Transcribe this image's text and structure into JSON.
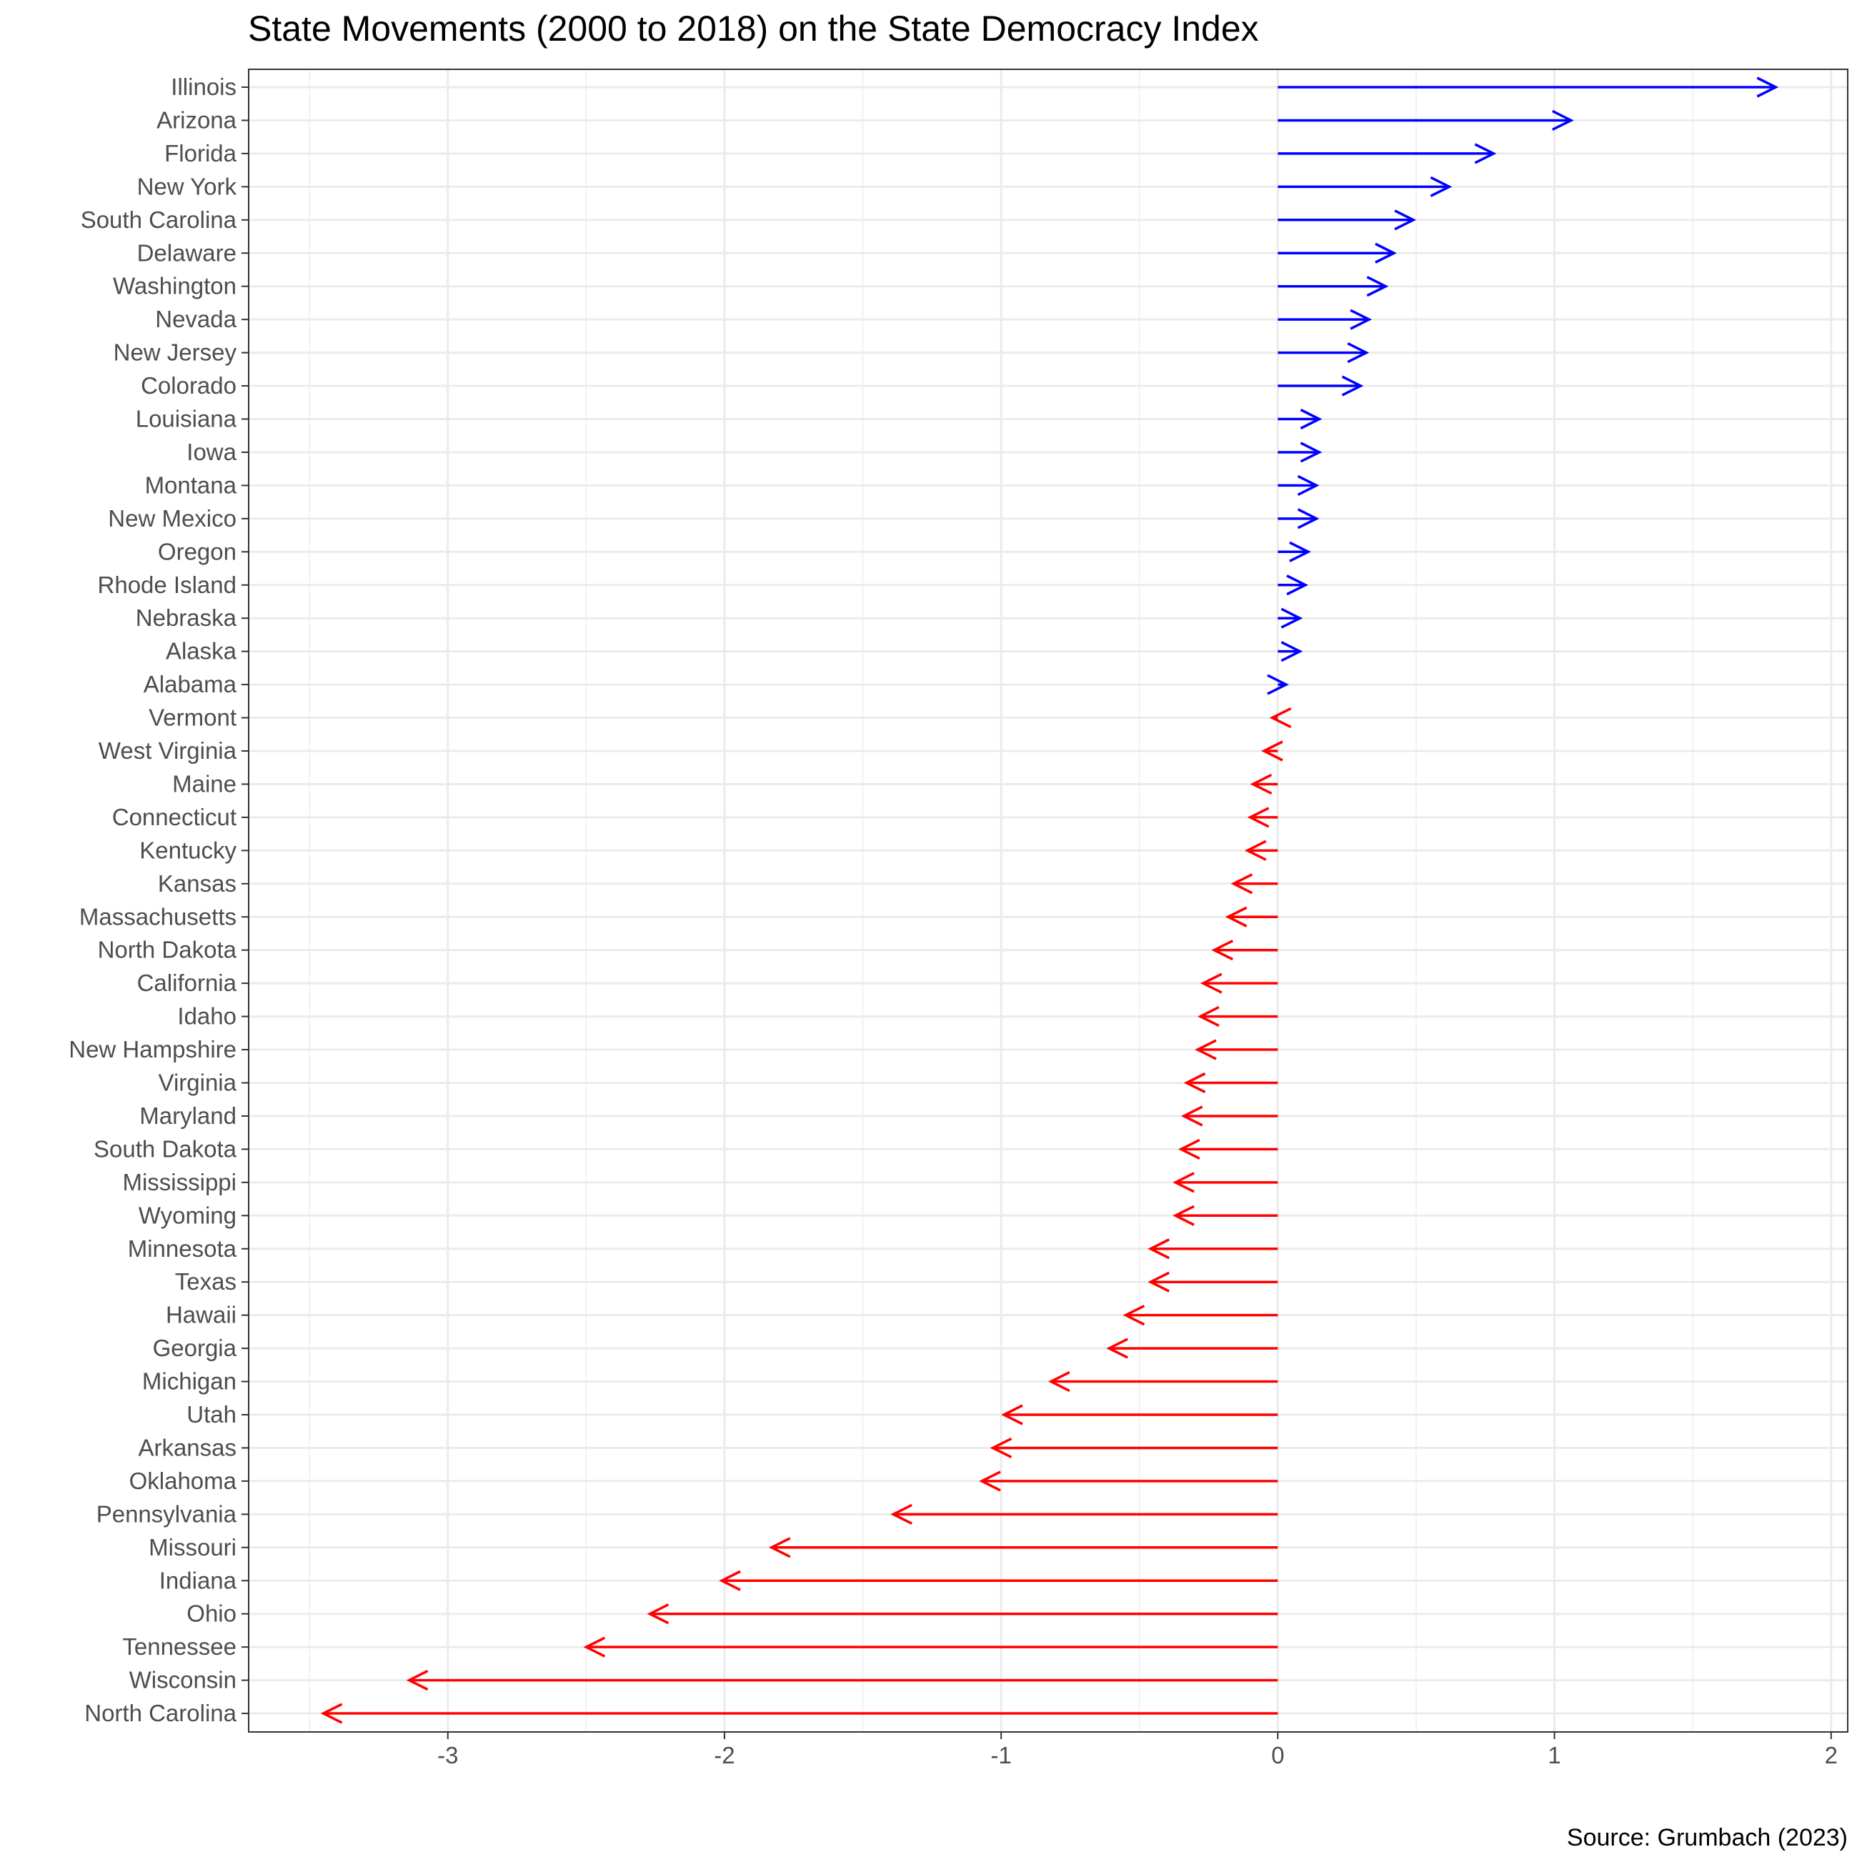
{
  "chart_data": {
    "type": "arrow",
    "title": "State Movements (2000 to 2018) on the State Democracy Index",
    "caption": "Source: Grumbach (2023)",
    "xlabel": "",
    "ylabel": "",
    "xlim": [
      -3.72,
      2.06
    ],
    "xticks": [
      -3,
      -2,
      -1,
      0,
      1,
      2
    ],
    "grid": true,
    "colors": {
      "positive": "#0000ff",
      "negative": "#ff0000"
    },
    "series": [
      {
        "state": "Illinois",
        "start": 0,
        "end": 1.8
      },
      {
        "state": "Arizona",
        "start": 0,
        "end": 1.06
      },
      {
        "state": "Florida",
        "start": 0,
        "end": 0.78
      },
      {
        "state": "New York",
        "start": 0,
        "end": 0.62
      },
      {
        "state": "South Carolina",
        "start": 0,
        "end": 0.49
      },
      {
        "state": "Delaware",
        "start": 0,
        "end": 0.42
      },
      {
        "state": "Washington",
        "start": 0,
        "end": 0.39
      },
      {
        "state": "Nevada",
        "start": 0,
        "end": 0.33
      },
      {
        "state": "New Jersey",
        "start": 0,
        "end": 0.32
      },
      {
        "state": "Colorado",
        "start": 0,
        "end": 0.3
      },
      {
        "state": "Louisiana",
        "start": 0,
        "end": 0.15
      },
      {
        "state": "Iowa",
        "start": 0,
        "end": 0.15
      },
      {
        "state": "Montana",
        "start": 0,
        "end": 0.14
      },
      {
        "state": "New Mexico",
        "start": 0,
        "end": 0.14
      },
      {
        "state": "Oregon",
        "start": 0,
        "end": 0.11
      },
      {
        "state": "Rhode Island",
        "start": 0,
        "end": 0.1
      },
      {
        "state": "Nebraska",
        "start": 0,
        "end": 0.08
      },
      {
        "state": "Alaska",
        "start": 0,
        "end": 0.08
      },
      {
        "state": "Alabama",
        "start": 0,
        "end": 0.03
      },
      {
        "state": "Vermont",
        "start": 0,
        "end": -0.02
      },
      {
        "state": "West Virginia",
        "start": 0,
        "end": -0.05
      },
      {
        "state": "Maine",
        "start": 0,
        "end": -0.09
      },
      {
        "state": "Connecticut",
        "start": 0,
        "end": -0.1
      },
      {
        "state": "Kentucky",
        "start": 0,
        "end": -0.11
      },
      {
        "state": "Kansas",
        "start": 0,
        "end": -0.16
      },
      {
        "state": "Massachusetts",
        "start": 0,
        "end": -0.18
      },
      {
        "state": "North Dakota",
        "start": 0,
        "end": -0.23
      },
      {
        "state": "California",
        "start": 0,
        "end": -0.27
      },
      {
        "state": "Idaho",
        "start": 0,
        "end": -0.28
      },
      {
        "state": "New Hampshire",
        "start": 0,
        "end": -0.29
      },
      {
        "state": "Virginia",
        "start": 0,
        "end": -0.33
      },
      {
        "state": "Maryland",
        "start": 0,
        "end": -0.34
      },
      {
        "state": "South Dakota",
        "start": 0,
        "end": -0.35
      },
      {
        "state": "Mississippi",
        "start": 0,
        "end": -0.37
      },
      {
        "state": "Wyoming",
        "start": 0,
        "end": -0.37
      },
      {
        "state": "Minnesota",
        "start": 0,
        "end": -0.46
      },
      {
        "state": "Texas",
        "start": 0,
        "end": -0.46
      },
      {
        "state": "Hawaii",
        "start": 0,
        "end": -0.55
      },
      {
        "state": "Georgia",
        "start": 0,
        "end": -0.61
      },
      {
        "state": "Michigan",
        "start": 0,
        "end": -0.82
      },
      {
        "state": "Utah",
        "start": 0,
        "end": -0.99
      },
      {
        "state": "Arkansas",
        "start": 0,
        "end": -1.03
      },
      {
        "state": "Oklahoma",
        "start": 0,
        "end": -1.07
      },
      {
        "state": "Pennsylvania",
        "start": 0,
        "end": -1.39
      },
      {
        "state": "Missouri",
        "start": 0,
        "end": -1.83
      },
      {
        "state": "Indiana",
        "start": 0,
        "end": -2.01
      },
      {
        "state": "Ohio",
        "start": 0,
        "end": -2.27
      },
      {
        "state": "Tennessee",
        "start": 0,
        "end": -2.5
      },
      {
        "state": "Wisconsin",
        "start": 0,
        "end": -3.14
      },
      {
        "state": "North Carolina",
        "start": 0,
        "end": -3.45
      }
    ]
  }
}
